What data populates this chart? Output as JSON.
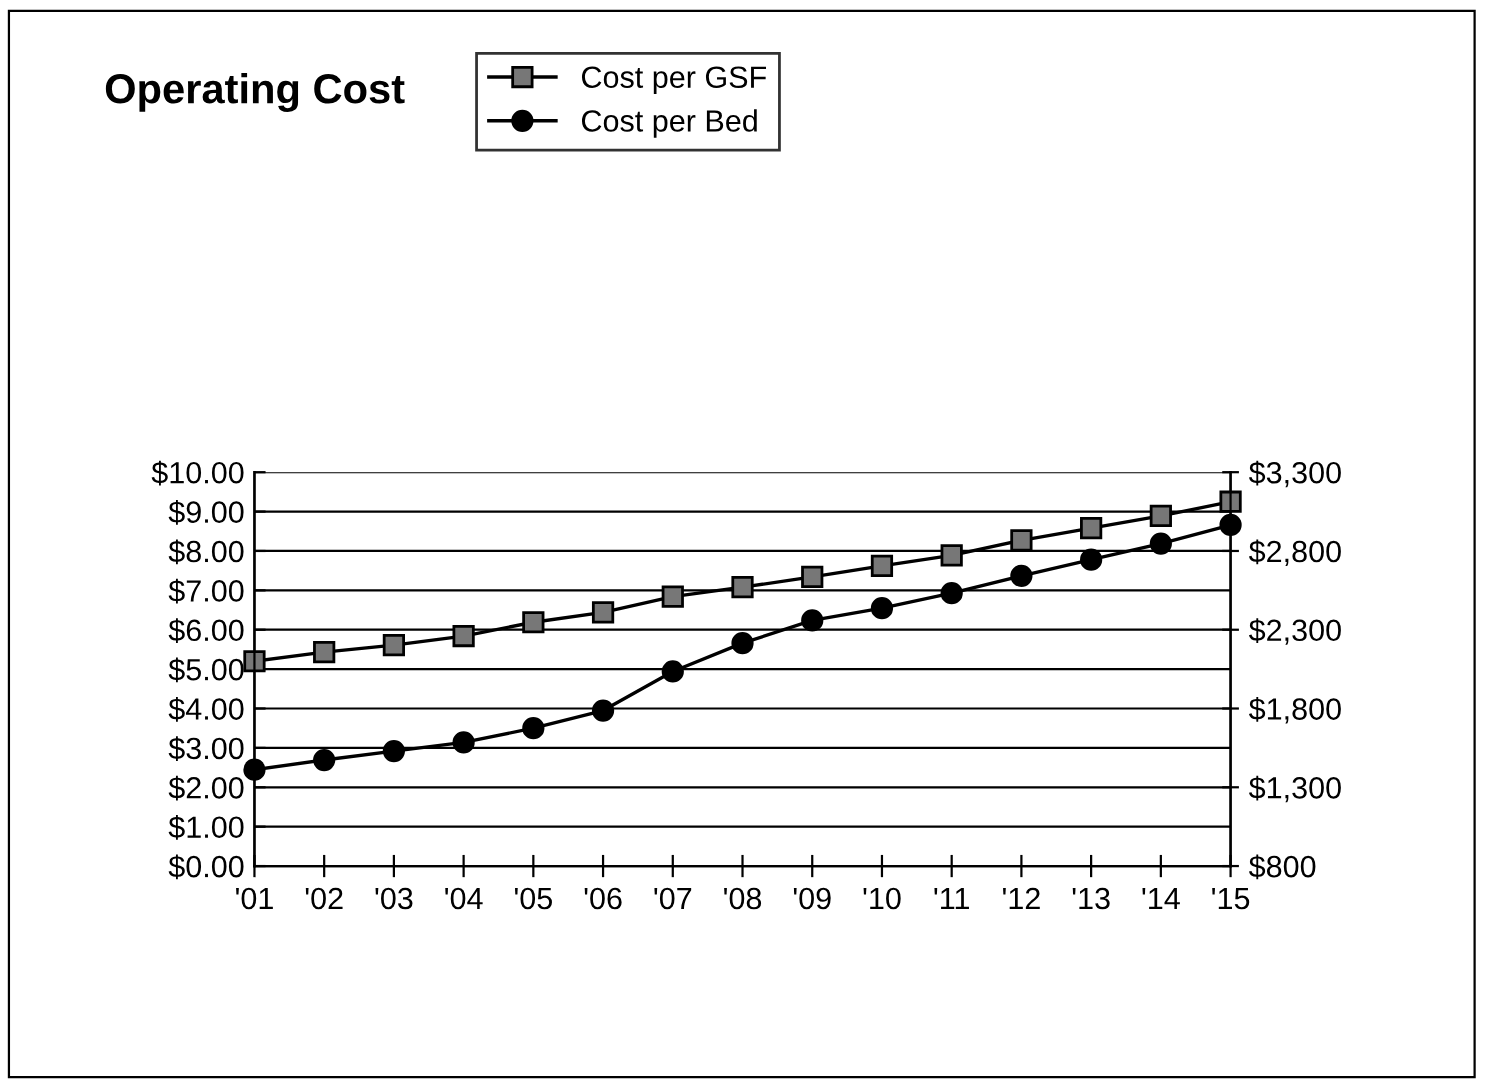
{
  "chart_data": {
    "type": "line",
    "title": "Operating Cost",
    "categories": [
      "'01",
      "'02",
      "'03",
      "'04",
      "'05",
      "'06",
      "'07",
      "'08",
      "'09",
      "'10",
      "'11",
      "'12",
      "'13",
      "'14",
      "'15"
    ],
    "series": [
      {
        "name": "Cost per GSF",
        "color": "#000000",
        "marker": "square",
        "values": [
          5.2,
          5.43,
          5.61,
          5.84,
          6.19,
          6.44,
          6.84,
          7.08,
          7.34,
          7.62,
          7.89,
          8.27,
          8.58,
          8.89,
          9.25
        ]
      },
      {
        "name": "Cost per Bed",
        "color": "#000000",
        "marker": "circle",
        "axis": "y2",
        "values": [
          1412,
          1473,
          1530,
          1585,
          1675,
          1787,
          2035,
          2215,
          2359,
          2437,
          2532,
          2642,
          2745,
          2847,
          2965
        ]
      }
    ],
    "ylim": [
      0,
      10
    ],
    "yticks": [
      {
        "value": 0,
        "label": "$0.00"
      },
      {
        "value": 1,
        "label": "$1.00"
      },
      {
        "value": 2,
        "label": "$2.00"
      },
      {
        "value": 3,
        "label": "$3.00"
      },
      {
        "value": 4,
        "label": "$4.00"
      },
      {
        "value": 5,
        "label": "$5.00"
      },
      {
        "value": 6,
        "label": "$6.00"
      },
      {
        "value": 7,
        "label": "$7.00"
      },
      {
        "value": 8,
        "label": "$8.00"
      },
      {
        "value": 9,
        "label": "$9.00"
      },
      {
        "value": 10,
        "label": "$10.00"
      }
    ],
    "y2lim": [
      800,
      3300
    ],
    "y2ticks": [
      {
        "value": 800,
        "label": "$800"
      },
      {
        "value": 1300,
        "label": "$1,300"
      },
      {
        "value": 1800,
        "label": "$1,800"
      },
      {
        "value": 2300,
        "label": "$2,300"
      },
      {
        "value": 2800,
        "label": "$2,800"
      },
      {
        "value": 3300,
        "label": "$3,300"
      }
    ],
    "grid": "y",
    "legend": "top",
    "line_style": "solid"
  }
}
